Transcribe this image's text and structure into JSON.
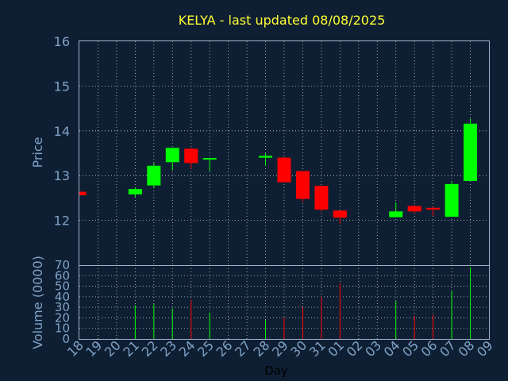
{
  "chart_data": {
    "type": "candlestick",
    "title": "KELYA - last updated 08/08/2025",
    "xlabel": "Day",
    "ylabel_price": "Price",
    "ylabel_volume": "Volume (0000)",
    "price_ticks": [
      12,
      13,
      14,
      15,
      16
    ],
    "price_range": [
      11.0,
      16.0
    ],
    "volume_ticks": [
      0,
      10,
      20,
      30,
      40,
      50,
      60,
      70
    ],
    "volume_range": [
      0,
      70
    ],
    "x_labels": [
      "18",
      "19",
      "20",
      "21",
      "22",
      "23",
      "24",
      "25",
      "26",
      "27",
      "28",
      "29",
      "30",
      "31",
      "01",
      "02",
      "03",
      "04",
      "05",
      "06",
      "07",
      "08",
      "09"
    ],
    "grid": true,
    "colors": {
      "up": "#00ff00",
      "down": "#ff0000",
      "title": "#ffff33",
      "axis_text": "#7fa3c8",
      "background": "#0f1f33"
    },
    "candles": [
      {
        "x": "18",
        "open": 12.64,
        "close": 12.56,
        "high": 12.64,
        "low": 12.56,
        "volume": 0
      },
      {
        "x": "21",
        "open": 12.58,
        "close": 12.7,
        "high": 12.74,
        "low": 12.52,
        "volume": 32
      },
      {
        "x": "22",
        "open": 12.78,
        "close": 13.22,
        "high": 13.28,
        "low": 12.72,
        "volume": 33
      },
      {
        "x": "23",
        "open": 13.3,
        "close": 13.62,
        "high": 13.62,
        "low": 13.12,
        "volume": 29
      },
      {
        "x": "24",
        "open": 13.6,
        "close": 13.28,
        "high": 13.62,
        "low": 13.15,
        "volume": 37
      },
      {
        "x": "25",
        "open": 13.36,
        "close": 13.39,
        "high": 13.39,
        "low": 13.1,
        "volume": 25
      },
      {
        "x": "28",
        "open": 13.4,
        "close": 13.44,
        "high": 13.5,
        "low": 13.22,
        "volume": 18
      },
      {
        "x": "29",
        "open": 13.4,
        "close": 12.85,
        "high": 13.42,
        "low": 12.85,
        "volume": 20
      },
      {
        "x": "30",
        "open": 13.1,
        "close": 12.48,
        "high": 13.1,
        "low": 12.42,
        "volume": 30
      },
      {
        "x": "31",
        "open": 12.77,
        "close": 12.24,
        "high": 12.77,
        "low": 12.2,
        "volume": 40
      },
      {
        "x": "01",
        "open": 12.22,
        "close": 12.06,
        "high": 12.22,
        "low": 11.92,
        "volume": 53
      },
      {
        "x": "04",
        "open": 12.07,
        "close": 12.2,
        "high": 12.4,
        "low": 12.07,
        "volume": 36
      },
      {
        "x": "05",
        "open": 12.32,
        "close": 12.2,
        "high": 12.35,
        "low": 12.16,
        "volume": 22
      },
      {
        "x": "06",
        "open": 12.28,
        "close": 12.24,
        "high": 12.3,
        "low": 12.1,
        "volume": 23
      },
      {
        "x": "07",
        "open": 12.08,
        "close": 12.81,
        "high": 12.87,
        "low": 12.08,
        "volume": 46
      },
      {
        "x": "08",
        "open": 12.88,
        "close": 14.16,
        "high": 14.27,
        "low": 12.88,
        "volume": 68
      }
    ]
  }
}
